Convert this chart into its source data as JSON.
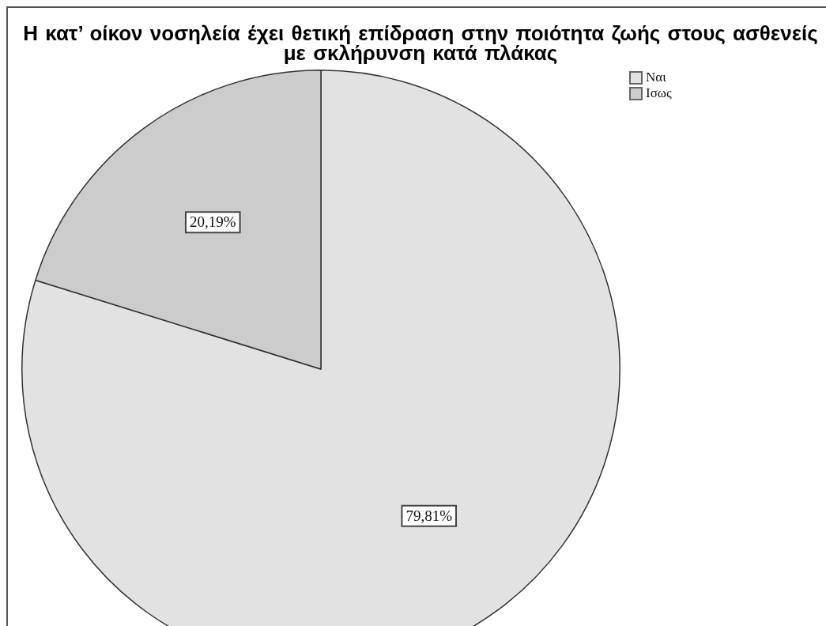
{
  "chart_data": {
    "type": "pie",
    "title": "Η κατ’ οίκον νοσηλεία έχει θετική επίδραση στην ποιότητα ζωής στους ασθενείς με σκλήρυνση κατά πλάκας",
    "categories": [
      "Ναι",
      "Ισως"
    ],
    "values": [
      79.81,
      20.19
    ],
    "colors": [
      "#e2e2e2",
      "#cccccc"
    ],
    "value_labels": [
      "79,81%",
      "20,19%"
    ],
    "legend": "top right"
  }
}
